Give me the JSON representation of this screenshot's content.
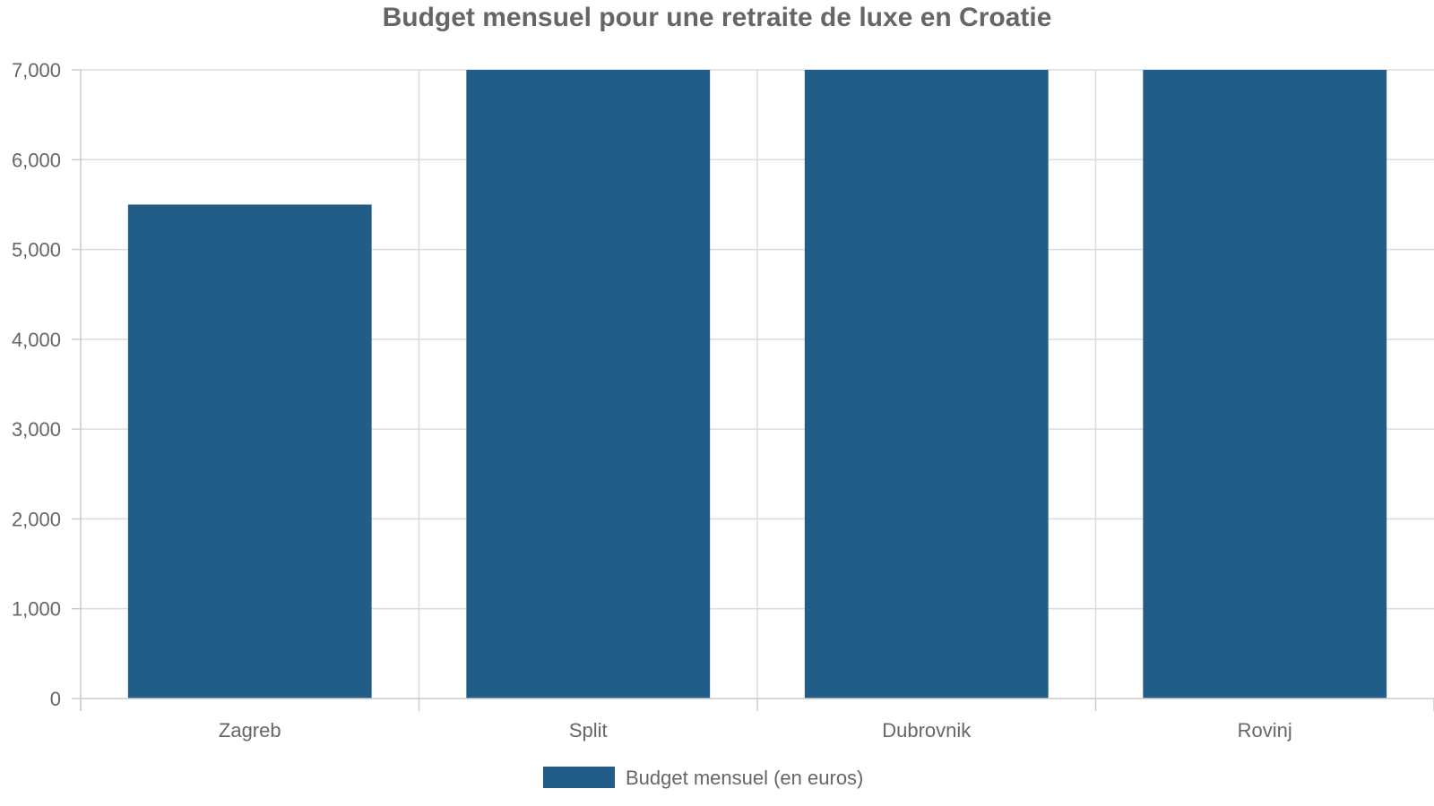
{
  "chart_data": {
    "type": "bar",
    "title": "Budget mensuel pour une retraite de luxe en Croatie",
    "categories": [
      "Zagreb",
      "Split",
      "Dubrovnik",
      "Rovinj"
    ],
    "series": [
      {
        "name": "Budget mensuel (en euros)",
        "values": [
          5500,
          7000,
          7000,
          7000
        ],
        "color": "#215d87"
      }
    ],
    "ylim": [
      0,
      7000
    ],
    "yticks": [
      "0",
      "1,000",
      "2,000",
      "3,000",
      "4,000",
      "5,000",
      "6,000",
      "7,000"
    ],
    "ytick_values": [
      0,
      1000,
      2000,
      3000,
      4000,
      5000,
      6000,
      7000
    ],
    "xlabel": "",
    "ylabel": "",
    "grid": true,
    "legend_position": "bottom"
  }
}
